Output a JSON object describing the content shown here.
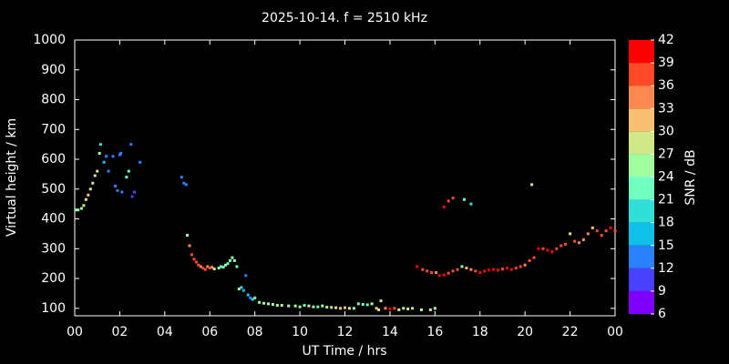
{
  "chart_data": {
    "type": "scatter",
    "title": "2025-10-14. f = 2510 kHz",
    "x_label": "UT Time / hrs",
    "y_label": "Virtual height / km",
    "xlim": [
      0,
      24
    ],
    "xticks": [
      {
        "value": 0,
        "label": "00"
      },
      {
        "value": 2,
        "label": "02"
      },
      {
        "value": 4,
        "label": "04"
      },
      {
        "value": 6,
        "label": "06"
      },
      {
        "value": 8,
        "label": "08"
      },
      10,
      12,
      14,
      16,
      18,
      20,
      22,
      {
        "value": 24,
        "label": "00"
      }
    ],
    "ylim": [
      75,
      1000
    ],
    "yticks": [
      100,
      200,
      300,
      400,
      500,
      600,
      700,
      800,
      900,
      1000
    ],
    "colorbar": {
      "label": "SNR / dB",
      "lim": [
        6,
        42
      ],
      "ticks": [
        6,
        9,
        12,
        15,
        18,
        21,
        24,
        27,
        30,
        33,
        36,
        39,
        42
      ],
      "colors": [
        "#8000ff",
        "#4a40ff",
        "#2a80ff",
        "#10c0e8",
        "#30e0d8",
        "#70ffc0",
        "#a0ffa0",
        "#d0e888",
        "#f8c070",
        "#ff8850",
        "#ff4a28",
        "#ff0000"
      ]
    },
    "x": [
      0.05,
      0.15,
      0.3,
      0.4,
      0.5,
      0.6,
      0.7,
      0.8,
      0.9,
      1.0,
      1.1,
      1.15,
      1.3,
      1.4,
      1.5,
      1.7,
      1.8,
      1.9,
      2.0,
      2.05,
      2.1,
      2.3,
      2.4,
      2.5,
      2.55,
      2.65,
      2.9,
      4.75,
      4.85,
      4.95,
      5.0,
      5.1,
      5.2,
      5.3,
      5.4,
      5.5,
      5.6,
      5.7,
      5.8,
      5.9,
      6.0,
      6.1,
      6.2,
      6.4,
      6.5,
      6.6,
      6.7,
      6.8,
      6.9,
      7.0,
      7.1,
      7.2,
      7.3,
      7.4,
      7.5,
      7.6,
      7.7,
      7.8,
      7.9,
      8.0,
      8.2,
      8.4,
      8.6,
      8.8,
      9.0,
      9.2,
      9.5,
      9.8,
      10.0,
      10.2,
      10.4,
      10.6,
      10.8,
      11.0,
      11.2,
      11.4,
      11.6,
      11.8,
      12.0,
      12.2,
      12.4,
      12.6,
      12.8,
      13.0,
      13.2,
      13.4,
      13.5,
      13.6,
      13.8,
      14.0,
      14.2,
      14.4,
      14.6,
      14.8,
      15.0,
      15.4,
      15.8,
      16.0,
      15.2,
      15.45,
      15.65,
      15.85,
      16.05,
      16.2,
      16.4,
      16.6,
      16.8,
      17.0,
      17.2,
      17.4,
      17.6,
      17.8,
      18.0,
      18.2,
      18.4,
      18.6,
      18.8,
      19.0,
      19.2,
      19.4,
      19.6,
      19.8,
      20.0,
      20.2,
      20.4,
      20.6,
      20.8,
      21.0,
      21.2,
      21.4,
      21.6,
      21.8,
      22.0,
      22.2,
      22.4,
      22.6,
      22.8,
      23.0,
      23.2,
      23.4,
      23.6,
      23.8,
      24.0,
      16.4,
      16.6,
      16.8,
      17.3,
      17.6,
      20.3
    ],
    "y": [
      430,
      430,
      435,
      445,
      465,
      480,
      500,
      520,
      545,
      560,
      620,
      650,
      590,
      610,
      560,
      610,
      510,
      495,
      615,
      620,
      490,
      540,
      560,
      650,
      475,
      490,
      590,
      540,
      520,
      515,
      345,
      310,
      280,
      265,
      255,
      245,
      240,
      235,
      230,
      240,
      235,
      238,
      232,
      235,
      240,
      238,
      245,
      250,
      260,
      270,
      260,
      240,
      165,
      170,
      160,
      210,
      145,
      135,
      130,
      135,
      120,
      117,
      115,
      113,
      110,
      110,
      108,
      108,
      105,
      110,
      108,
      105,
      105,
      108,
      104,
      103,
      102,
      100,
      102,
      100,
      100,
      115,
      113,
      112,
      115,
      100,
      95,
      125,
      100,
      98,
      100,
      95,
      100,
      98,
      100,
      95,
      95,
      100,
      240,
      230,
      225,
      220,
      220,
      210,
      212,
      218,
      225,
      230,
      240,
      235,
      230,
      225,
      220,
      225,
      228,
      230,
      228,
      232,
      235,
      230,
      235,
      240,
      245,
      260,
      270,
      300,
      300,
      295,
      290,
      300,
      310,
      315,
      350,
      325,
      320,
      330,
      350,
      370,
      360,
      345,
      360,
      370,
      360,
      440,
      460,
      470,
      465,
      450,
      515
    ],
    "snr": [
      24,
      24,
      24,
      27,
      27,
      30,
      27,
      27,
      27,
      27,
      24,
      18,
      15,
      12,
      12,
      12,
      12,
      12,
      12,
      12,
      12,
      21,
      21,
      12,
      9,
      9,
      12,
      12,
      12,
      12,
      24,
      33,
      36,
      36,
      36,
      36,
      33,
      36,
      36,
      33,
      36,
      33,
      27,
      24,
      21,
      21,
      24,
      21,
      21,
      24,
      21,
      21,
      24,
      18,
      15,
      12,
      15,
      12,
      18,
      21,
      24,
      24,
      24,
      24,
      24,
      27,
      24,
      24,
      24,
      21,
      27,
      24,
      21,
      24,
      24,
      27,
      27,
      30,
      30,
      27,
      24,
      21,
      21,
      21,
      24,
      30,
      27,
      27,
      33,
      39,
      36,
      27,
      24,
      27,
      27,
      24,
      27,
      24,
      39,
      36,
      36,
      36,
      33,
      39,
      39,
      36,
      36,
      36,
      21,
      30,
      33,
      36,
      39,
      39,
      39,
      39,
      39,
      36,
      39,
      39,
      36,
      36,
      33,
      36,
      36,
      39,
      36,
      39,
      39,
      36,
      36,
      36,
      27,
      36,
      33,
      33,
      33,
      30,
      36,
      36,
      36,
      39,
      36,
      39,
      36,
      36,
      21,
      18,
      27
    ]
  }
}
